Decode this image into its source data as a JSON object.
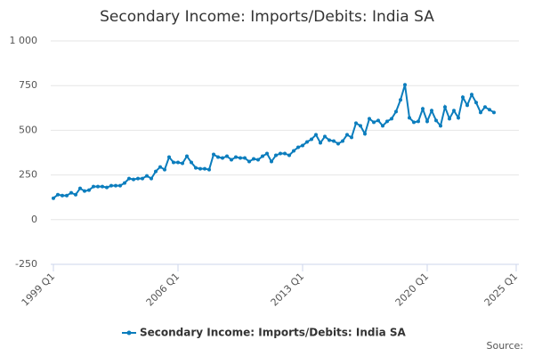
{
  "chart_data": {
    "type": "line",
    "title": "Secondary Income: Imports/Debits: India SA",
    "source": "Source:",
    "x": [
      1999,
      1999.25,
      1999.5,
      1999.75,
      2000,
      2000.25,
      2000.5,
      2000.75,
      2001,
      2001.25,
      2001.5,
      2001.75,
      2002,
      2002.25,
      2002.5,
      2002.75,
      2003,
      2003.25,
      2003.5,
      2003.75,
      2004,
      2004.25,
      2004.5,
      2004.75,
      2005,
      2005.25,
      2005.5,
      2005.75,
      2006,
      2006.25,
      2006.5,
      2006.75,
      2007,
      2007.25,
      2007.5,
      2007.75,
      2008,
      2008.25,
      2008.5,
      2008.75,
      2009,
      2009.25,
      2009.5,
      2009.75,
      2010,
      2010.25,
      2010.5,
      2010.75,
      2011,
      2011.25,
      2011.5,
      2011.75,
      2012,
      2012.25,
      2012.5,
      2012.75,
      2013,
      2013.25,
      2013.5,
      2013.75,
      2014,
      2014.25,
      2014.5,
      2014.75,
      2015,
      2015.25,
      2015.5,
      2015.75,
      2016,
      2016.25,
      2016.5,
      2016.75,
      2017,
      2017.25,
      2017.5,
      2017.75,
      2018,
      2018.25,
      2018.5,
      2018.75,
      2019,
      2019.25,
      2019.5,
      2019.75,
      2020,
      2020.25,
      2020.5,
      2020.75,
      2021,
      2021.25,
      2021.5,
      2021.75,
      2022,
      2022.25,
      2022.5,
      2022.75,
      2023,
      2023.25,
      2023.5,
      2023.75
    ],
    "series": [
      {
        "name": "Secondary Income: Imports/Debits: India SA",
        "color": "#0b7dbd",
        "values": [
          120,
          140,
          135,
          135,
          150,
          140,
          175,
          160,
          165,
          185,
          185,
          185,
          180,
          190,
          190,
          190,
          205,
          230,
          225,
          230,
          230,
          245,
          230,
          270,
          295,
          280,
          350,
          320,
          320,
          315,
          355,
          320,
          290,
          285,
          285,
          280,
          365,
          350,
          345,
          355,
          335,
          350,
          345,
          345,
          325,
          340,
          335,
          355,
          370,
          325,
          360,
          370,
          370,
          360,
          385,
          405,
          415,
          435,
          450,
          475,
          430,
          465,
          445,
          440,
          425,
          440,
          475,
          460,
          540,
          525,
          480,
          565,
          545,
          555,
          525,
          550,
          565,
          605,
          670,
          755,
          570,
          545,
          550,
          620,
          550,
          610,
          555,
          525,
          630,
          565,
          610,
          570,
          685,
          640,
          700,
          655,
          600,
          630,
          615,
          600
        ]
      }
    ],
    "xlim": [
      1998.85,
      2025.15
    ],
    "xticks": [
      {
        "value": 1999,
        "label": "1999 Q1"
      },
      {
        "value": 2006,
        "label": "2006 Q1"
      },
      {
        "value": 2013,
        "label": "2013 Q1"
      },
      {
        "value": 2020,
        "label": "2020 Q1"
      },
      {
        "value": 2025,
        "label": "2025 Q1"
      }
    ],
    "ylim": [
      -250,
      1000
    ],
    "yticks": [
      -250,
      0,
      250,
      500,
      750,
      {
        "value": 1000,
        "label": "1 000"
      }
    ],
    "grid": true
  }
}
